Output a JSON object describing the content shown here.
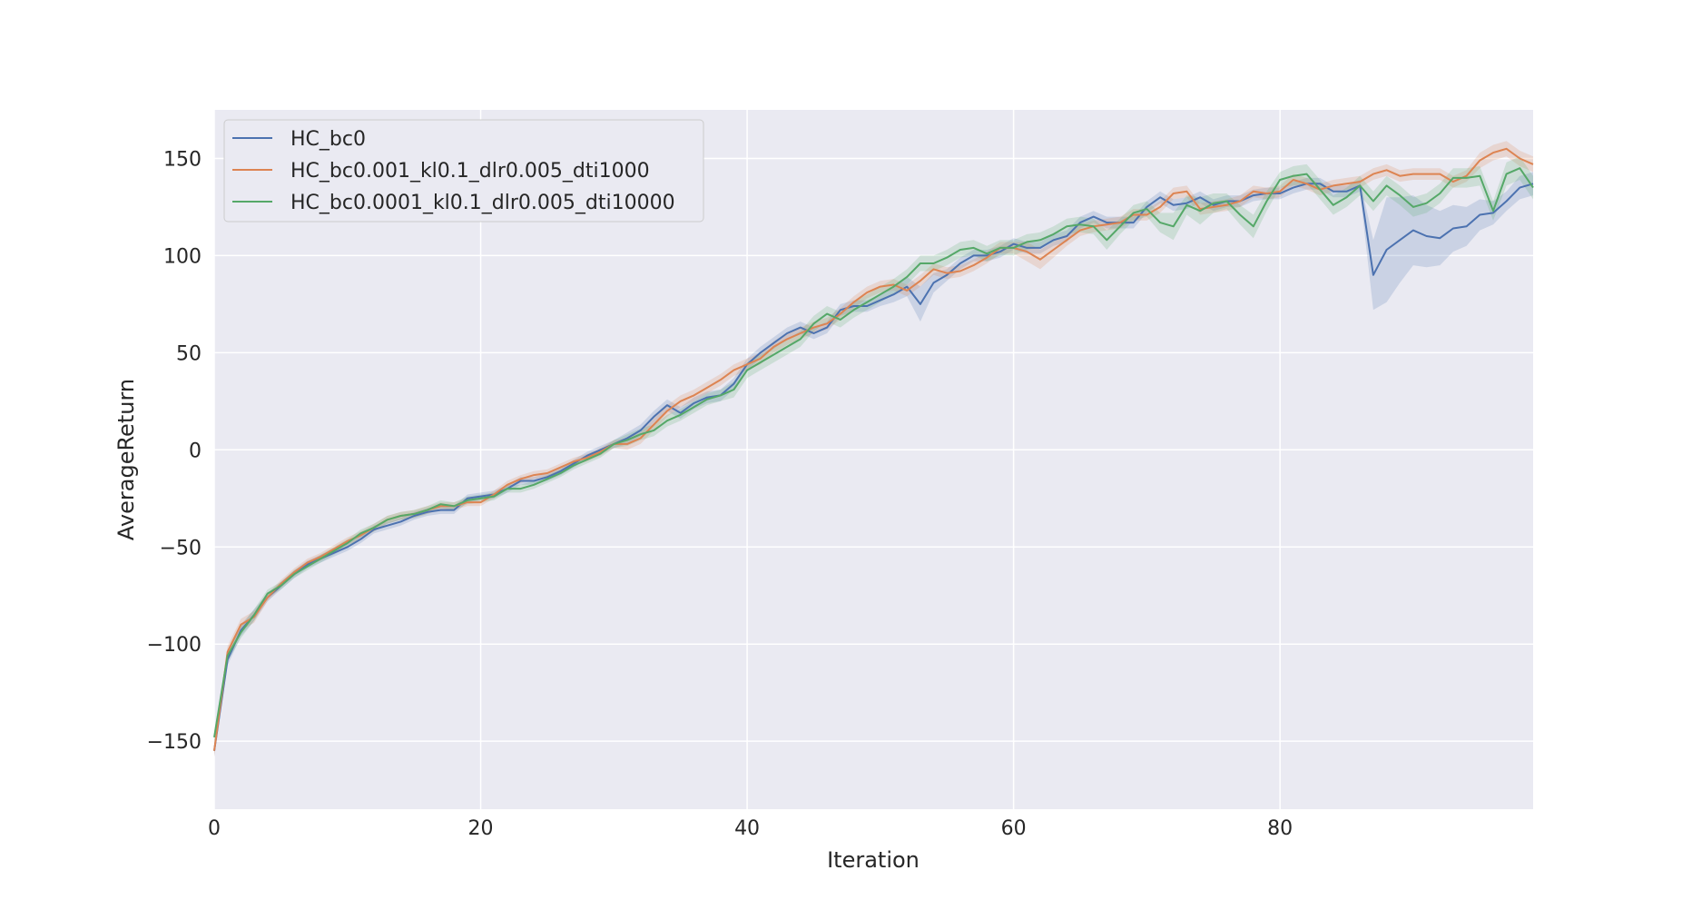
{
  "chart_data": {
    "type": "line",
    "xlabel": "Iteration",
    "ylabel": "AverageReturn",
    "xlim": [
      0,
      99
    ],
    "ylim": [
      -185,
      175
    ],
    "xticks": [
      0,
      20,
      40,
      60,
      80
    ],
    "yticks": [
      -150,
      -100,
      -50,
      0,
      50,
      100,
      150
    ],
    "ytick_labels": [
      "−150",
      "−100",
      "−50",
      "0",
      "50",
      "100",
      "150"
    ],
    "grid": true,
    "legend_position": "upper-left",
    "background": "#eaeaf2",
    "series": [
      {
        "name": "HC_bc0",
        "color": "#4c72b0",
        "x": [
          0,
          1,
          2,
          3,
          4,
          5,
          6,
          7,
          8,
          9,
          10,
          11,
          12,
          13,
          14,
          15,
          16,
          17,
          18,
          19,
          20,
          21,
          22,
          23,
          24,
          25,
          26,
          27,
          28,
          29,
          30,
          31,
          32,
          33,
          34,
          35,
          36,
          37,
          38,
          39,
          40,
          41,
          42,
          43,
          44,
          45,
          46,
          47,
          48,
          49,
          50,
          51,
          52,
          53,
          54,
          55,
          56,
          57,
          58,
          59,
          60,
          61,
          62,
          63,
          64,
          65,
          66,
          67,
          68,
          69,
          70,
          71,
          72,
          73,
          74,
          75,
          76,
          77,
          78,
          79,
          80,
          81,
          82,
          83,
          84,
          85,
          86,
          87,
          88,
          89,
          90,
          91,
          92,
          93,
          94,
          95,
          96,
          97,
          98,
          99
        ],
        "y": [
          -155,
          -108,
          -93,
          -85,
          -76,
          -70,
          -64,
          -59,
          -56,
          -53,
          -50,
          -46,
          -41,
          -39,
          -37,
          -34,
          -32,
          -31,
          -31,
          -25,
          -24,
          -23,
          -20,
          -16,
          -16,
          -14,
          -11,
          -7,
          -3,
          0,
          3,
          6,
          10,
          17,
          23,
          19,
          24,
          27,
          28,
          34,
          44,
          50,
          55,
          60,
          63,
          60,
          63,
          72,
          74,
          74,
          77,
          80,
          84,
          75,
          86,
          90,
          96,
          100,
          100,
          102,
          106,
          104,
          104,
          108,
          110,
          117,
          120,
          117,
          117,
          117,
          125,
          130,
          126,
          127,
          130,
          126,
          128,
          128,
          131,
          132,
          132,
          135,
          137,
          137,
          133,
          133,
          136,
          90,
          103,
          108,
          113,
          110,
          109,
          114,
          115,
          121,
          122,
          128,
          135,
          137
        ],
        "band": [
          3,
          3,
          3,
          3,
          2,
          2,
          2,
          2,
          2,
          2,
          2,
          2,
          2,
          2,
          2,
          2,
          2,
          2,
          2,
          2,
          2,
          2,
          2,
          2,
          2,
          2,
          2,
          2,
          2,
          2,
          2,
          3,
          3,
          3,
          3,
          3,
          3,
          3,
          3,
          3,
          3,
          3,
          3,
          3,
          3,
          3,
          3,
          3,
          3,
          3,
          3,
          4,
          5,
          9,
          5,
          3,
          3,
          3,
          3,
          3,
          3,
          3,
          3,
          3,
          3,
          3,
          3,
          3,
          3,
          3,
          3,
          3,
          3,
          3,
          3,
          3,
          3,
          3,
          3,
          3,
          3,
          3,
          3,
          3,
          3,
          3,
          3,
          18,
          27,
          22,
          18,
          16,
          14,
          12,
          10,
          8,
          6,
          5,
          6,
          6
        ]
      },
      {
        "name": "HC_bc0.001_kl0.1_dlr0.005_dti1000",
        "color": "#dd8452",
        "x": [
          0,
          1,
          2,
          3,
          4,
          5,
          6,
          7,
          8,
          9,
          10,
          11,
          12,
          13,
          14,
          15,
          16,
          17,
          18,
          19,
          20,
          21,
          22,
          23,
          24,
          25,
          26,
          27,
          28,
          29,
          30,
          31,
          32,
          33,
          34,
          35,
          36,
          37,
          38,
          39,
          40,
          41,
          42,
          43,
          44,
          45,
          46,
          47,
          48,
          49,
          50,
          51,
          52,
          53,
          54,
          55,
          56,
          57,
          58,
          59,
          60,
          61,
          62,
          63,
          64,
          65,
          66,
          67,
          68,
          69,
          70,
          71,
          72,
          73,
          74,
          75,
          76,
          77,
          78,
          79,
          80,
          81,
          82,
          83,
          84,
          85,
          86,
          87,
          88,
          89,
          90,
          91,
          92,
          93,
          94,
          95,
          96,
          97,
          98,
          99
        ],
        "y": [
          -155,
          -104,
          -90,
          -86,
          -76,
          -69,
          -63,
          -58,
          -55,
          -51,
          -47,
          -44,
          -40,
          -36,
          -34,
          -33,
          -31,
          -29,
          -29,
          -27,
          -27,
          -23,
          -18,
          -15,
          -13,
          -12,
          -9,
          -6,
          -4,
          -1,
          3,
          3,
          6,
          13,
          20,
          25,
          28,
          32,
          36,
          41,
          44,
          47,
          53,
          57,
          60,
          63,
          65,
          70,
          76,
          81,
          84,
          85,
          82,
          87,
          93,
          91,
          92,
          95,
          99,
          104,
          104,
          102,
          98,
          103,
          108,
          113,
          115,
          116,
          117,
          121,
          121,
          125,
          132,
          133,
          124,
          125,
          126,
          128,
          133,
          132,
          133,
          139,
          137,
          134,
          136,
          137,
          138,
          142,
          144,
          141,
          142,
          142,
          142,
          138,
          141,
          149,
          153,
          155,
          150,
          147
        ],
        "band": [
          3,
          3,
          3,
          3,
          2,
          2,
          2,
          2,
          2,
          2,
          2,
          2,
          2,
          2,
          2,
          2,
          2,
          2,
          2,
          2,
          2,
          2,
          2,
          2,
          2,
          2,
          2,
          2,
          2,
          2,
          2,
          3,
          3,
          3,
          3,
          3,
          3,
          3,
          3,
          3,
          3,
          3,
          3,
          3,
          3,
          3,
          3,
          3,
          3,
          3,
          3,
          3,
          3,
          3,
          3,
          3,
          3,
          3,
          3,
          3,
          3,
          5,
          5,
          4,
          3,
          3,
          3,
          3,
          3,
          3,
          3,
          3,
          3,
          3,
          3,
          3,
          3,
          3,
          3,
          3,
          3,
          3,
          3,
          3,
          3,
          3,
          3,
          3,
          3,
          3,
          3,
          3,
          3,
          3,
          3,
          4,
          4,
          4,
          4,
          4
        ]
      },
      {
        "name": "HC_bc0.0001_kl0.1_dlr0.005_dti10000",
        "color": "#55a868",
        "x": [
          0,
          1,
          2,
          3,
          4,
          5,
          6,
          7,
          8,
          9,
          10,
          11,
          12,
          13,
          14,
          15,
          16,
          17,
          18,
          19,
          20,
          21,
          22,
          23,
          24,
          25,
          26,
          27,
          28,
          29,
          30,
          31,
          32,
          33,
          34,
          35,
          36,
          37,
          38,
          39,
          40,
          41,
          42,
          43,
          44,
          45,
          46,
          47,
          48,
          49,
          50,
          51,
          52,
          53,
          54,
          55,
          56,
          57,
          58,
          59,
          60,
          61,
          62,
          63,
          64,
          65,
          66,
          67,
          68,
          69,
          70,
          71,
          72,
          73,
          74,
          75,
          76,
          77,
          78,
          79,
          80,
          81,
          82,
          83,
          84,
          85,
          86,
          87,
          88,
          89,
          90,
          91,
          92,
          93,
          94,
          95,
          96,
          97,
          98,
          99
        ],
        "y": [
          -148,
          -106,
          -94,
          -85,
          -74,
          -70,
          -64,
          -60,
          -56,
          -52,
          -48,
          -43,
          -40,
          -36,
          -34,
          -33,
          -31,
          -28,
          -29,
          -26,
          -25,
          -24,
          -20,
          -20,
          -18,
          -15,
          -12,
          -8,
          -5,
          -2,
          3,
          5,
          8,
          10,
          15,
          18,
          22,
          26,
          28,
          31,
          41,
          45,
          49,
          53,
          57,
          65,
          70,
          67,
          72,
          76,
          80,
          84,
          89,
          96,
          96,
          99,
          103,
          104,
          101,
          104,
          104,
          107,
          108,
          111,
          115,
          116,
          115,
          108,
          115,
          122,
          124,
          117,
          115,
          126,
          123,
          127,
          128,
          121,
          115,
          128,
          139,
          141,
          142,
          134,
          126,
          130,
          136,
          128,
          136,
          131,
          125,
          127,
          132,
          140,
          140,
          141,
          123,
          142,
          145,
          135
        ],
        "band": [
          3,
          3,
          3,
          3,
          2,
          2,
          2,
          2,
          2,
          2,
          2,
          2,
          2,
          2,
          2,
          2,
          2,
          2,
          2,
          2,
          2,
          2,
          2,
          2,
          2,
          2,
          2,
          2,
          2,
          2,
          2,
          3,
          3,
          3,
          3,
          3,
          3,
          3,
          3,
          4,
          4,
          4,
          4,
          4,
          4,
          4,
          4,
          4,
          4,
          4,
          4,
          4,
          4,
          4,
          4,
          4,
          4,
          4,
          4,
          4,
          4,
          4,
          4,
          4,
          4,
          4,
          4,
          5,
          4,
          4,
          4,
          5,
          7,
          5,
          7,
          5,
          4,
          5,
          6,
          5,
          4,
          5,
          5,
          5,
          5,
          5,
          5,
          5,
          5,
          5,
          5,
          5,
          5,
          5,
          5,
          5,
          5,
          6,
          6,
          6
        ]
      }
    ]
  }
}
